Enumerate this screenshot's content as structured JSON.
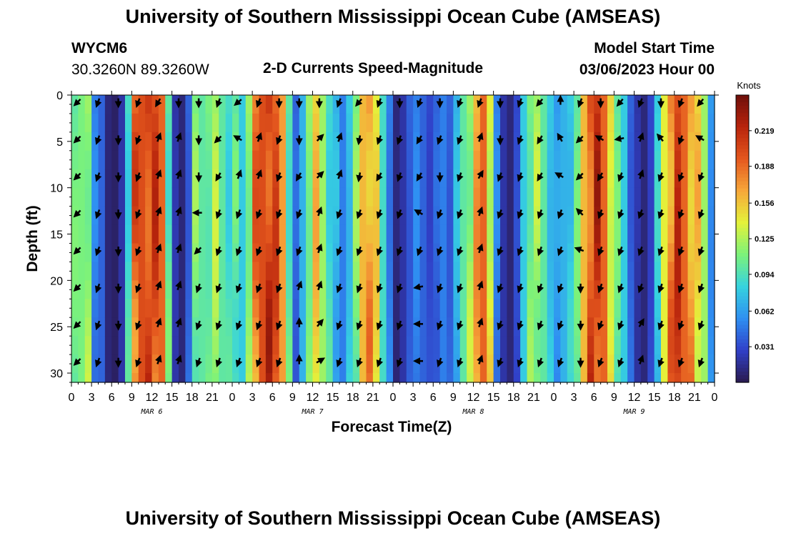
{
  "header": {
    "title": "University of Southern Mississippi Ocean Cube (AMSEAS)",
    "station_id": "WYCM6",
    "coordinates": "30.3260N  89.3260W",
    "subtitle": "2-D Currents Speed-Magnitude",
    "model_start_label": "Model Start Time",
    "model_start_value": "03/06/2023 Hour 00"
  },
  "footer": {
    "title": "University of Southern Mississippi Ocean Cube (AMSEAS)"
  },
  "colorbar": {
    "unit_label": "Knots",
    "ticks": [
      "0.219",
      "0.188",
      "0.156",
      "0.125",
      "0.094",
      "0.062",
      "0.031"
    ],
    "tick_values": [
      0.219,
      0.188,
      0.156,
      0.125,
      0.094,
      0.062,
      0.031
    ],
    "min": 0.0,
    "max": 0.25,
    "palette": [
      "#2a1a4e",
      "#3040c8",
      "#2f8ff2",
      "#36d3df",
      "#7cf27a",
      "#e4f23a",
      "#f7a73a",
      "#e4571e",
      "#b8240c",
      "#6e0f0a"
    ]
  },
  "chart_data": {
    "type": "heatmap",
    "title": "2-D Currents Speed-Magnitude",
    "xlabel": "Forecast Time(Z)",
    "ylabel": "Depth (ft)",
    "x_tick_labels": [
      "0",
      "3",
      "6",
      "9",
      "12",
      "15",
      "18",
      "21",
      "0",
      "3",
      "6",
      "9",
      "12",
      "15",
      "18",
      "21",
      "0",
      "3",
      "6",
      "9",
      "12",
      "15",
      "18",
      "21",
      "0",
      "3",
      "6",
      "9",
      "12",
      "15",
      "18",
      "21",
      "0"
    ],
    "x_tick_hours": [
      0,
      3,
      6,
      9,
      12,
      15,
      18,
      21,
      24,
      27,
      30,
      33,
      36,
      39,
      42,
      45,
      48,
      51,
      54,
      57,
      60,
      63,
      66,
      69,
      72,
      75,
      78,
      81,
      84,
      87,
      90,
      93,
      96
    ],
    "date_labels": [
      {
        "label": "MAR 6",
        "hour": 12
      },
      {
        "label": "MAR 7",
        "hour": 36
      },
      {
        "label": "MAR 8",
        "hour": 60
      },
      {
        "label": "MAR 9",
        "hour": 84
      }
    ],
    "xlim": [
      0,
      96
    ],
    "y_tick_labels": [
      "0",
      "5",
      "10",
      "15",
      "20",
      "25",
      "30"
    ],
    "y_tick_values": [
      0,
      5,
      10,
      15,
      20,
      25,
      30
    ],
    "ylim": [
      0,
      31
    ],
    "depths_ft": [
      0,
      2,
      4,
      6,
      8,
      10,
      12,
      14,
      16,
      18,
      20,
      22,
      24,
      26,
      28,
      30
    ],
    "hours": [
      0,
      1,
      2,
      3,
      4,
      5,
      6,
      7,
      8,
      9,
      10,
      11,
      12,
      13,
      14,
      15,
      16,
      17,
      18,
      19,
      20,
      21,
      22,
      23,
      24,
      25,
      26,
      27,
      28,
      29,
      30,
      31,
      32,
      33,
      34,
      35,
      36,
      37,
      38,
      39,
      40,
      41,
      42,
      43,
      44,
      45,
      46,
      47,
      48,
      49,
      50,
      51,
      52,
      53,
      54,
      55,
      56,
      57,
      58,
      59,
      60,
      61,
      62,
      63,
      64,
      65,
      66,
      67,
      68,
      69,
      70,
      71,
      72,
      73,
      74,
      75,
      76,
      77,
      78,
      79,
      80,
      81,
      82,
      83,
      84,
      85,
      86,
      87,
      88,
      89,
      90,
      91,
      92,
      93,
      94,
      95,
      96
    ],
    "speed_profile_hourly_knots": [
      0.1,
      0.11,
      0.12,
      0.05,
      0.04,
      0.01,
      0.005,
      0.02,
      0.09,
      0.19,
      0.2,
      0.21,
      0.2,
      0.19,
      0.1,
      0.02,
      0.01,
      0.04,
      0.11,
      0.1,
      0.11,
      0.12,
      0.1,
      0.09,
      0.1,
      0.08,
      0.12,
      0.18,
      0.2,
      0.21,
      0.19,
      0.17,
      0.1,
      0.04,
      0.07,
      0.12,
      0.15,
      0.12,
      0.09,
      0.07,
      0.05,
      0.08,
      0.11,
      0.16,
      0.17,
      0.14,
      0.09,
      0.05,
      0.01,
      0.02,
      0.04,
      0.05,
      0.04,
      0.03,
      0.04,
      0.05,
      0.04,
      0.07,
      0.1,
      0.12,
      0.16,
      0.19,
      0.14,
      0.05,
      0.02,
      0.01,
      0.03,
      0.08,
      0.11,
      0.12,
      0.1,
      0.08,
      0.06,
      0.07,
      0.08,
      0.1,
      0.16,
      0.2,
      0.21,
      0.19,
      0.15,
      0.1,
      0.08,
      0.04,
      0.02,
      0.01,
      0.03,
      0.08,
      0.14,
      0.18,
      0.2,
      0.19,
      0.17,
      0.15,
      0.12,
      0.06,
      0.05
    ],
    "arrow_hours": [
      1,
      4,
      7,
      10,
      13,
      16,
      19,
      22,
      25,
      28,
      31,
      34,
      37,
      40,
      43,
      46,
      49,
      52,
      55,
      58,
      61,
      64,
      67,
      70,
      73,
      76,
      79,
      82,
      85,
      88,
      91,
      94
    ],
    "arrow_depths_ft": [
      0,
      4,
      8,
      12,
      16,
      20,
      24,
      28
    ],
    "arrow_directions_deg": [
      [
        225,
        200,
        180,
        200,
        210,
        180,
        180,
        200,
        230,
        200,
        180,
        180,
        180,
        200,
        220,
        200,
        180,
        200,
        180,
        200,
        200,
        180,
        200,
        220,
        0,
        200,
        180,
        220,
        200,
        180,
        200,
        220
      ],
      [
        225,
        200,
        180,
        200,
        20,
        20,
        180,
        225,
        300,
        20,
        200,
        180,
        45,
        20,
        190,
        200,
        200,
        210,
        200,
        200,
        20,
        180,
        200,
        210,
        330,
        225,
        300,
        260,
        20,
        320,
        200,
        300
      ],
      [
        225,
        200,
        180,
        200,
        20,
        20,
        180,
        210,
        20,
        20,
        200,
        210,
        45,
        20,
        190,
        210,
        200,
        210,
        180,
        200,
        30,
        200,
        200,
        210,
        300,
        225,
        210,
        200,
        20,
        200,
        200,
        200
      ],
      [
        225,
        200,
        180,
        200,
        20,
        20,
        270,
        200,
        200,
        200,
        200,
        200,
        20,
        200,
        200,
        200,
        200,
        300,
        200,
        200,
        20,
        200,
        200,
        200,
        200,
        315,
        200,
        200,
        200,
        200,
        200,
        200
      ],
      [
        225,
        200,
        180,
        200,
        20,
        20,
        225,
        200,
        200,
        200,
        200,
        200,
        20,
        200,
        200,
        200,
        200,
        200,
        200,
        200,
        20,
        200,
        200,
        200,
        200,
        290,
        200,
        200,
        200,
        200,
        200,
        200
      ],
      [
        225,
        200,
        180,
        200,
        20,
        20,
        200,
        200,
        200,
        200,
        200,
        20,
        20,
        200,
        200,
        200,
        200,
        260,
        200,
        200,
        20,
        200,
        200,
        200,
        200,
        180,
        200,
        200,
        200,
        200,
        200,
        200
      ],
      [
        225,
        200,
        180,
        200,
        20,
        20,
        200,
        200,
        200,
        200,
        200,
        0,
        40,
        200,
        200,
        200,
        200,
        270,
        200,
        200,
        20,
        200,
        200,
        200,
        200,
        180,
        200,
        200,
        30,
        200,
        200,
        200
      ],
      [
        225,
        200,
        180,
        200,
        20,
        20,
        200,
        200,
        200,
        200,
        200,
        0,
        60,
        200,
        200,
        200,
        200,
        270,
        200,
        200,
        20,
        200,
        200,
        200,
        200,
        180,
        200,
        200,
        20,
        200,
        200,
        200
      ]
    ]
  }
}
